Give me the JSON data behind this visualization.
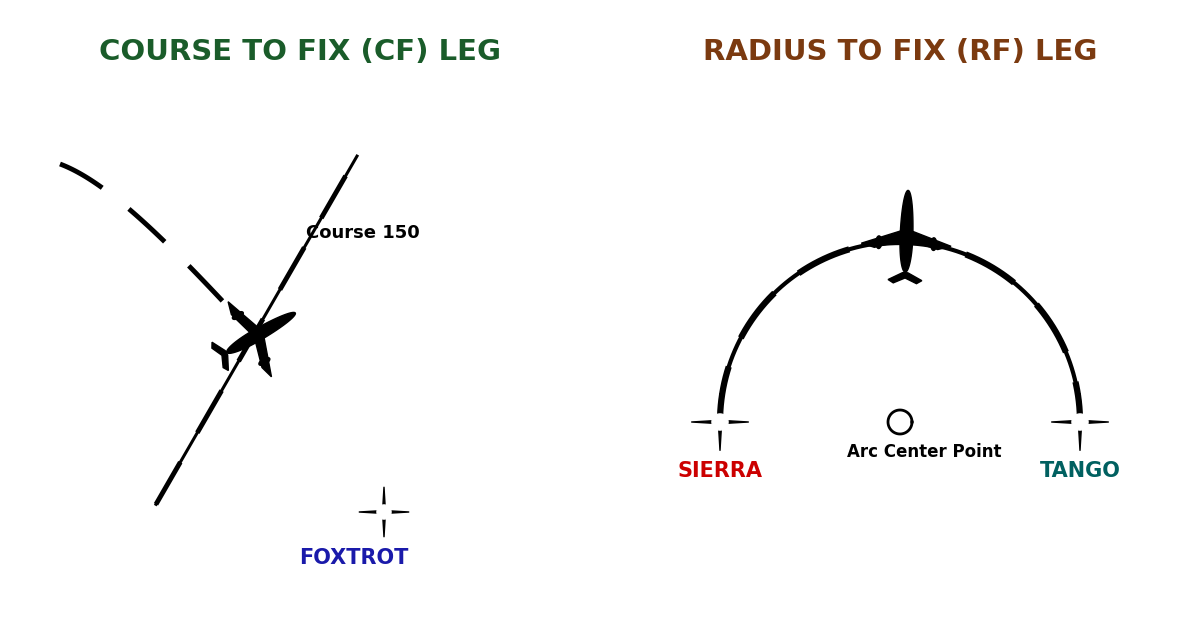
{
  "bg_color": "#ffffff",
  "left_title": "COURSE TO FIX (CF) LEG",
  "right_title": "RADIUS TO FIX (RF) LEG",
  "left_title_color": "#1a5c2a",
  "right_title_color": "#7b3a10",
  "foxtrot_label": "FOXTROT",
  "foxtrot_color": "#1a1aaa",
  "sierra_label": "SIERRA",
  "sierra_color": "#cc0000",
  "tango_label": "TANGO",
  "tango_color": "#006060",
  "arc_center_label": "Arc Center Point",
  "course_label": "Course 150",
  "line_color": "#000000"
}
